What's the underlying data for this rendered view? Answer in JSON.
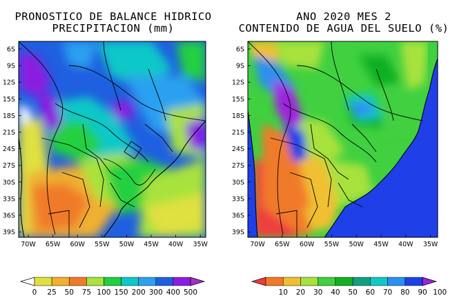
{
  "left_panel": {
    "title_line1": "PRONOSTICO DE BALANCE HIDRICO",
    "title_line2": "PRECIPITACION (mm)",
    "colorbar": {
      "ticks": [
        "0",
        "25",
        "50",
        "75",
        "100",
        "150",
        "200",
        "300",
        "400",
        "500"
      ],
      "colors": [
        "#ffffff",
        "#e0e040",
        "#f0b030",
        "#f07a2a",
        "#a8e23c",
        "#20d040",
        "#10c8c8",
        "#2aa0f0",
        "#1f5fe0",
        "#8c1ee0",
        "#a030c8"
      ]
    }
  },
  "right_panel": {
    "title_line1": "ANO 2020 MES 2",
    "title_line2": "CONTENIDO DE AGUA DEL SUELO (%)",
    "colorbar": {
      "ticks": [
        "10",
        "20",
        "30",
        "40",
        "50",
        "60",
        "70",
        "80",
        "90",
        "100"
      ],
      "colors": [
        "#f03c3c",
        "#f07a2a",
        "#f0c030",
        "#a8e23c",
        "#40d040",
        "#10b020",
        "#10a080",
        "#10c8c8",
        "#2a90f0",
        "#1f3fe8",
        "#a020e0"
      ]
    }
  },
  "axes": {
    "lat_labels": [
      "6S",
      "9S",
      "12S",
      "15S",
      "18S",
      "21S",
      "24S",
      "27S",
      "30S",
      "33S",
      "36S",
      "39S"
    ],
    "lon_labels": [
      "70W",
      "65W",
      "60W",
      "55W",
      "50W",
      "45W",
      "40W",
      "35W"
    ]
  }
}
